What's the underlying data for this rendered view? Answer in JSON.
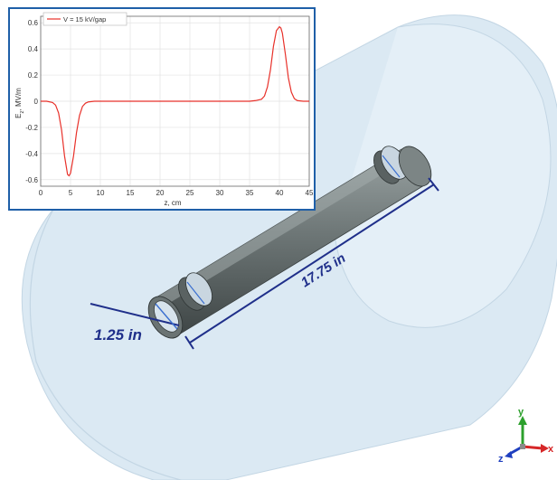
{
  "dimensions": {
    "diameter_label": "1.25 in",
    "length_label": "17.75 in"
  },
  "triad": {
    "x_label": "x",
    "y_label": "y",
    "z_label": "z",
    "x_color": "#d62728",
    "y_color": "#2ca02c",
    "z_color": "#1f3fbf"
  },
  "colors": {
    "cylinder_fill": "#dbe9f3",
    "cylinder_stroke": "#c3d6e4",
    "tube_dark": "#4a5252",
    "tube_mid": "#6e7777",
    "tube_light": "#8f9898",
    "dimension_line": "#1f2f8a",
    "inset_border": "#1f5fa8",
    "curve": "#e8312a"
  },
  "chart_data": {
    "type": "line",
    "title": "",
    "xlabel": "z, cm",
    "ylabel": "E_z, MV/m",
    "ylabel_main": "E",
    "ylabel_sub": "z",
    "ylabel_rest": ", MV/m",
    "xlim": [
      0,
      45
    ],
    "ylim": [
      -0.65,
      0.65
    ],
    "xticks": [
      0,
      5,
      10,
      15,
      20,
      25,
      30,
      35,
      40,
      45
    ],
    "yticks": [
      -0.6,
      -0.4,
      -0.2,
      0,
      0.2,
      0.4,
      0.6
    ],
    "grid": true,
    "legend_position": "top-left",
    "series": [
      {
        "name": "V = 15 kV/gap",
        "color": "#e8312a",
        "x": [
          0,
          1,
          2,
          2.5,
          3,
          3.5,
          4,
          4.5,
          4.75,
          5,
          5.5,
          6,
          6.5,
          7,
          7.5,
          8,
          9,
          10,
          15,
          20,
          25,
          30,
          35,
          36,
          37,
          37.5,
          38,
          38.5,
          39,
          39.5,
          40,
          40.25,
          40.5,
          41,
          41.5,
          42,
          42.5,
          43,
          44,
          45
        ],
        "y": [
          0,
          0,
          -0.01,
          -0.03,
          -0.09,
          -0.22,
          -0.42,
          -0.56,
          -0.57,
          -0.55,
          -0.42,
          -0.24,
          -0.11,
          -0.04,
          -0.015,
          -0.005,
          0,
          0,
          0,
          0,
          0,
          0,
          0,
          0.005,
          0.015,
          0.04,
          0.11,
          0.24,
          0.42,
          0.54,
          0.57,
          0.56,
          0.52,
          0.36,
          0.18,
          0.07,
          0.02,
          0.005,
          0,
          0
        ]
      }
    ]
  }
}
